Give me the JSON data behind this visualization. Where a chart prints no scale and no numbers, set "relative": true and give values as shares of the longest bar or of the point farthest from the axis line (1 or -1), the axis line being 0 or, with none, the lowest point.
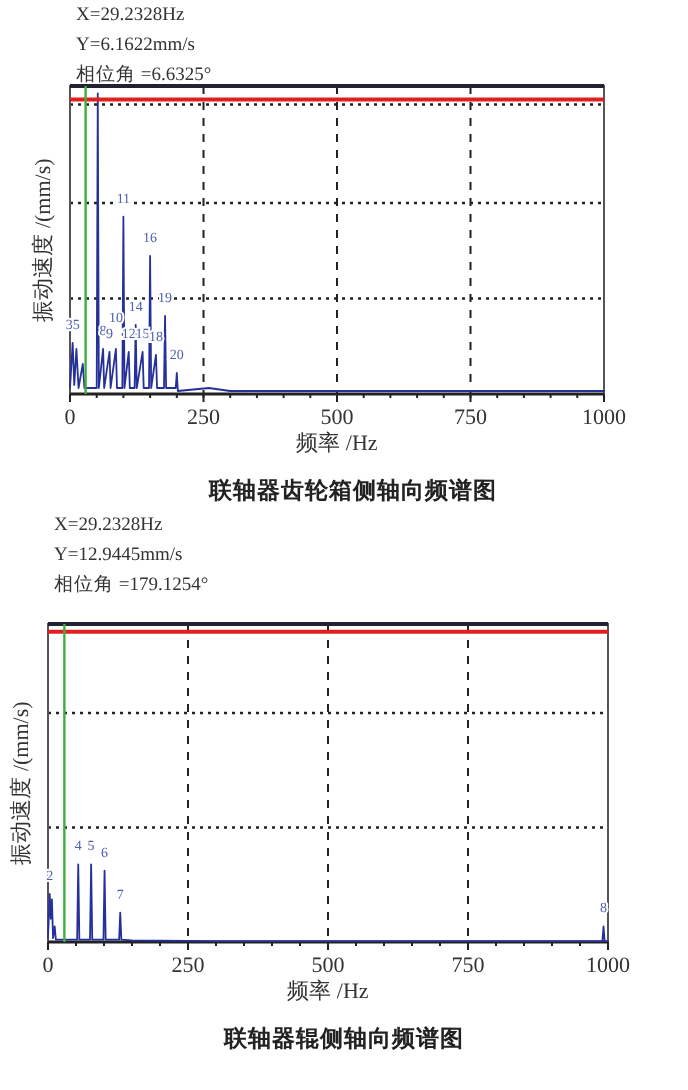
{
  "chart_data": [
    {
      "type": "line",
      "title": "联轴器齿轮箱侧轴向频谱图",
      "xlabel": "频率 /Hz",
      "ylabel": "振动速度 /(mm/s)",
      "relative": true,
      "xlim": [
        0,
        1000
      ],
      "xticks": [
        0,
        250,
        500,
        750,
        1000
      ],
      "grid": true,
      "marker": "none",
      "line_style": "solid",
      "series": [
        {
          "color": "#26309a",
          "x": [
            0,
            5,
            8,
            12,
            16,
            24,
            27,
            50,
            52,
            54,
            62,
            64,
            74,
            76,
            86,
            88,
            98,
            100,
            102,
            110,
            112,
            121,
            123,
            125,
            136,
            138,
            148,
            150,
            152,
            161,
            163,
            176,
            178,
            180,
            198,
            200,
            202,
            260,
            300,
            400,
            500,
            600,
            800,
            1000
          ],
          "values": [
            0.02,
            0.17,
            0.03,
            0.15,
            0.02,
            0.1,
            0.02,
            0.02,
            1.0,
            0.02,
            0.15,
            0.02,
            0.14,
            0.02,
            0.15,
            0.02,
            0.02,
            0.59,
            0.02,
            0.14,
            0.02,
            0.02,
            0.23,
            0.02,
            0.14,
            0.02,
            0.02,
            0.46,
            0.02,
            0.13,
            0.02,
            0.02,
            0.26,
            0.02,
            0.02,
            0.07,
            0.01,
            0.02,
            0.01,
            0.01,
            0.01,
            0.01,
            0.01,
            0.01
          ]
        }
      ],
      "ref_lines": [
        {
          "axis": "y",
          "value": 0.98,
          "color": "#e02020"
        },
        {
          "axis": "x",
          "value": 29.2328,
          "color": "#3fae3f"
        }
      ],
      "annotations": [
        "X=29.2328Hz",
        "Y=6.1622mm/s",
        "相位角 =6.6325°",
        {
          "text": "35",
          "x": 5,
          "y": 0.17
        },
        {
          "text": "8",
          "x": 62,
          "y": 0.15
        },
        {
          "text": "9",
          "x": 74,
          "y": 0.14
        },
        {
          "text": "10",
          "x": 86,
          "y": 0.15
        },
        {
          "text": "12",
          "x": 110,
          "y": 0.14
        },
        {
          "text": "15",
          "x": 136,
          "y": 0.14
        },
        {
          "text": "18",
          "x": 161,
          "y": 0.13
        },
        {
          "text": "11",
          "x": 100,
          "y": 0.59
        },
        {
          "text": "14",
          "x": 123,
          "y": 0.23
        },
        {
          "text": "16",
          "x": 150,
          "y": 0.46
        },
        {
          "text": "19",
          "x": 178,
          "y": 0.26
        },
        {
          "text": "20",
          "x": 200,
          "y": 0.07
        }
      ]
    },
    {
      "type": "line",
      "title": "联轴器辊侧轴向频谱图",
      "xlabel": "频率 /Hz",
      "ylabel": "振动速度 /(mm/s)",
      "relative": true,
      "xlim": [
        0,
        1000
      ],
      "xticks": [
        0,
        250,
        500,
        750,
        1000
      ],
      "grid": true,
      "marker": "none",
      "line_style": "solid",
      "series": [
        {
          "color": "#26309a",
          "x": [
            0,
            3,
            5,
            7,
            9,
            12,
            14,
            52,
            54,
            56,
            75,
            77,
            79,
            99,
            101,
            103,
            127,
            129,
            131,
            150,
            300,
            600,
            990,
            992,
            994,
            1000
          ],
          "values": [
            0.05,
            0.62,
            0.3,
            0.55,
            0.05,
            0.2,
            0.03,
            0.03,
            1.0,
            0.03,
            0.03,
            1.0,
            0.03,
            0.03,
            0.92,
            0.03,
            0.03,
            0.38,
            0.03,
            0.02,
            0.01,
            0.01,
            0.01,
            0.2,
            0.01,
            0.01
          ]
        }
      ],
      "ref_lines": [
        {
          "axis": "y",
          "value": 4.0,
          "color": "#e02020"
        },
        {
          "axis": "x",
          "value": 29.2328,
          "color": "#3fae3f"
        }
      ],
      "annotations": [
        "X=29.2328Hz",
        "Y=12.9445mm/s",
        "相位角 =179.1254°",
        {
          "text": "2",
          "x": 3,
          "y": 0.62
        },
        {
          "text": "4",
          "x": 54,
          "y": 1.0
        },
        {
          "text": "5",
          "x": 77,
          "y": 1.0
        },
        {
          "text": "6",
          "x": 101,
          "y": 0.92
        },
        {
          "text": "7",
          "x": 129,
          "y": 0.38
        },
        {
          "text": "8",
          "x": 992,
          "y": 0.2
        }
      ]
    }
  ]
}
